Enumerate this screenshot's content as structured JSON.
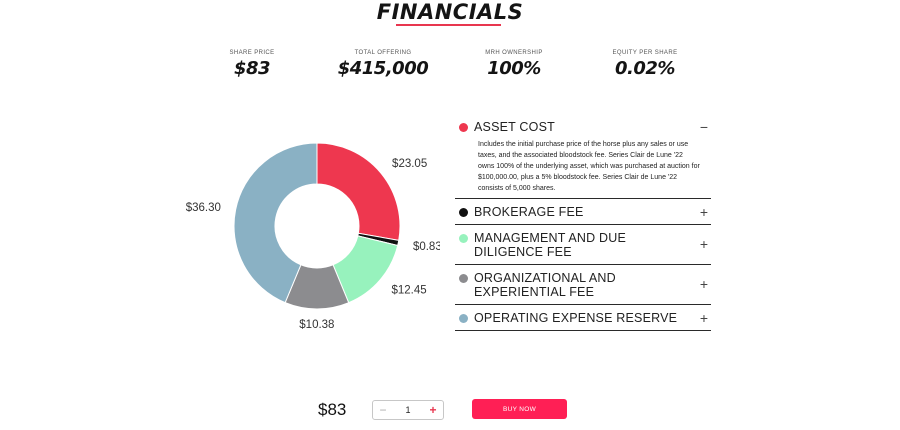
{
  "header": {
    "title": "FINANCIALS"
  },
  "stats": [
    {
      "label": "SHARE PRICE",
      "value": "$83"
    },
    {
      "label": "TOTAL OFFERING",
      "value": "$415,000"
    },
    {
      "label": "MRH OWNERSHIP",
      "value": "100%"
    },
    {
      "label": "EQUITY PER SHARE",
      "value": "0.02%"
    }
  ],
  "chart_data": {
    "type": "pie",
    "donut": true,
    "slices": [
      {
        "label": "$23.05",
        "value": 23.05,
        "color": "#ee374f"
      },
      {
        "label": "$0.83",
        "value": 0.83,
        "color": "#111111"
      },
      {
        "label": "$12.45",
        "value": 12.45,
        "color": "#97f2bd"
      },
      {
        "label": "$10.38",
        "value": 10.38,
        "color": "#8c8c8f"
      },
      {
        "label": "$36.30",
        "value": 36.3,
        "color": "#8ab1c4"
      }
    ]
  },
  "accordion": [
    {
      "title": "ASSET COST",
      "color": "#ee374f",
      "toggle": "−",
      "expanded": true,
      "body": "Includes the initial purchase price of the horse plus any sales or use taxes, and the associated bloodstock fee. Series Clair de Lune '22 owns 100% of the underlying asset, which was purchased at auction for $100,000.00, plus a 5% bloodstock fee. Series Clair de Lune '22 consists of 5,000 shares."
    },
    {
      "title": "BROKERAGE FEE",
      "color": "#111111",
      "toggle": "+"
    },
    {
      "title": "MANAGEMENT AND DUE DILIGENCE FEE",
      "color": "#97f2bd",
      "toggle": "+"
    },
    {
      "title": "ORGANIZATIONAL AND EXPERIENTIAL FEE",
      "color": "#8c8c8f",
      "toggle": "+"
    },
    {
      "title": "OPERATING EXPENSE RESERVE",
      "color": "#8ab1c4",
      "toggle": "+"
    }
  ],
  "purchase": {
    "price": "$83",
    "quantity": "1",
    "minus": "−",
    "plus": "+",
    "buy_label": "BUY NOW"
  }
}
